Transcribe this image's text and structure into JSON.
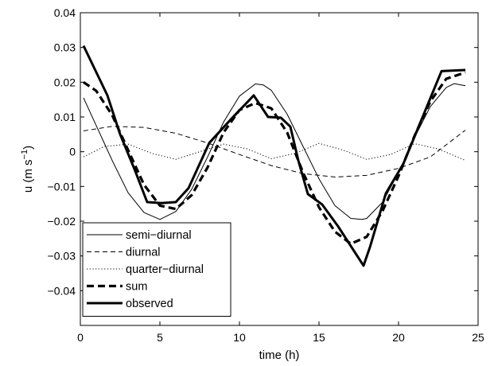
{
  "chart_data": {
    "type": "line",
    "xlabel": "time (h)",
    "ylabel": {
      "base": "u (m s",
      "sup": "−1",
      "close": ")"
    },
    "xlim": [
      0,
      25
    ],
    "ylim": [
      -0.05,
      0.04
    ],
    "xticks": [
      0,
      5,
      10,
      15,
      20,
      25
    ],
    "xtick_labels": [
      "0",
      "5",
      "10",
      "15",
      "20",
      "25"
    ],
    "yticks": [
      -0.04,
      -0.03,
      -0.02,
      -0.01,
      0,
      0.01,
      0.02,
      0.03,
      0.04
    ],
    "ytick_labels": [
      "−0.04",
      "−0.03",
      "−0.02",
      "−0.01",
      "0",
      "0.01",
      "0.02",
      "0.03",
      "0.04"
    ],
    "grid": false,
    "legend_position": "bottom-left",
    "series": [
      {
        "name": "semi−diurnal",
        "style": "thin-solid",
        "x": [
          0.2,
          1.0,
          2.0,
          3.0,
          4.0,
          5.0,
          6.0,
          7.0,
          8.0,
          9.0,
          10.0,
          11.0,
          11.5,
          12.0,
          13.0,
          14.0,
          15.0,
          16.0,
          17.0,
          17.7,
          18.0,
          19.0,
          20.0,
          21.0,
          22.0,
          23.0,
          23.5,
          24.2
        ],
        "y": [
          0.0155,
          0.0075,
          -0.0025,
          -0.0118,
          -0.0175,
          -0.0195,
          -0.0172,
          -0.0108,
          -0.0015,
          0.0085,
          0.016,
          0.0195,
          0.0192,
          0.0177,
          0.0108,
          0.0015,
          -0.0078,
          -0.0155,
          -0.0192,
          -0.0195,
          -0.0192,
          -0.0145,
          -0.006,
          0.004,
          0.013,
          0.0185,
          0.0196,
          0.019
        ]
      },
      {
        "name": "diurnal",
        "style": "dashed",
        "x": [
          0.2,
          2,
          4,
          6,
          8,
          10,
          12,
          14,
          16,
          18,
          20,
          22,
          24.2
        ],
        "y": [
          0.006,
          0.0073,
          0.007,
          0.0053,
          0.0025,
          -0.0008,
          -0.004,
          -0.0063,
          -0.0073,
          -0.0068,
          -0.0048,
          -0.0015,
          0.0062
        ]
      },
      {
        "name": "quarter−diurnal",
        "style": "dotted",
        "x": [
          0.2,
          1.5,
          3.0,
          4.5,
          6.0,
          7.5,
          9.0,
          10.5,
          12.0,
          13.5,
          15.0,
          16.5,
          18.0,
          19.5,
          21.0,
          22.5,
          24.2
        ],
        "y": [
          -0.0015,
          0.0015,
          0.0022,
          -0.0005,
          -0.0022,
          0.0,
          0.0022,
          0.0008,
          -0.002,
          -0.0005,
          0.0024,
          0.0005,
          -0.0022,
          -0.0008,
          0.0023,
          0.0008,
          -0.0025
        ]
      },
      {
        "name": "sum",
        "style": "thick-dashed",
        "x": [
          0.2,
          1.0,
          2.0,
          3.0,
          4.0,
          5.0,
          6.0,
          7.0,
          8.0,
          9.0,
          10.0,
          11.0,
          12.0,
          13.0,
          14.0,
          15.0,
          16.0,
          17.0,
          18.0,
          19.0,
          20.0,
          21.0,
          22.0,
          23.0,
          24.2
        ],
        "y": [
          0.02,
          0.0175,
          0.0105,
          0.0005,
          -0.0095,
          -0.0155,
          -0.0165,
          -0.0125,
          -0.0045,
          0.0055,
          0.012,
          0.014,
          0.0125,
          0.0055,
          -0.006,
          -0.016,
          -0.023,
          -0.0265,
          -0.0245,
          -0.017,
          -0.007,
          0.0045,
          0.0145,
          0.021,
          0.0228
        ]
      },
      {
        "name": "observed",
        "style": "thick-solid",
        "x": [
          0.2,
          1.7,
          2.5,
          3.4,
          4.2,
          5.1,
          6.0,
          6.8,
          8.1,
          9.5,
          10.9,
          11.8,
          12.6,
          13.2,
          13.7,
          14.3,
          15.2,
          16.2,
          17.8,
          18.2,
          19.2,
          20.3,
          22.7,
          24.2
        ],
        "y": [
          0.0305,
          0.0162,
          0.005,
          -0.005,
          -0.0145,
          -0.0148,
          -0.0145,
          -0.0105,
          0.0025,
          0.0095,
          0.0162,
          0.01,
          0.0098,
          0.0072,
          -0.0025,
          -0.0122,
          -0.0152,
          -0.0215,
          -0.0328,
          -0.0275,
          -0.012,
          -0.0035,
          0.0232,
          0.0235
        ]
      }
    ]
  }
}
